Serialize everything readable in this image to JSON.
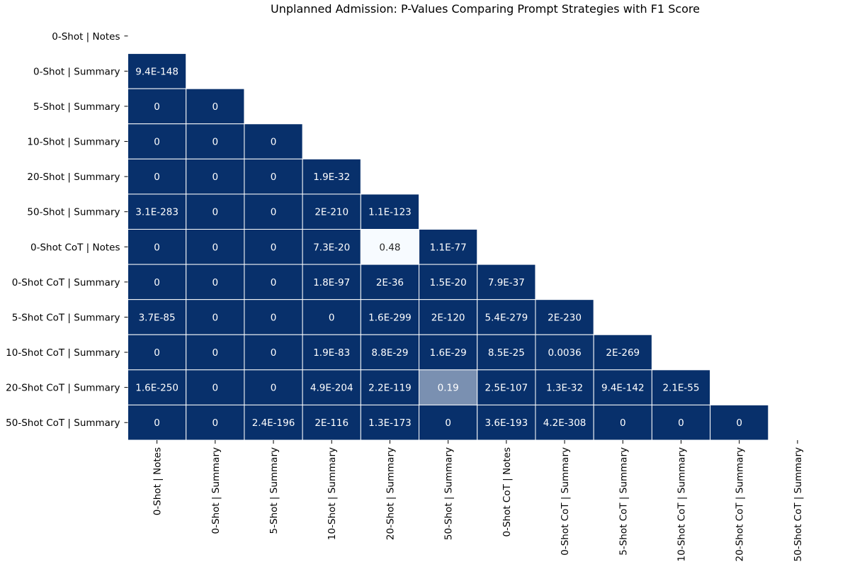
{
  "chart_data": {
    "type": "heatmap",
    "title": "Unplanned Admission: P-Values Comparing Prompt Strategies with F1 Score",
    "xlabel": "",
    "ylabel": "",
    "categories": [
      "0-Shot | Notes",
      "0-Shot | Summary",
      "5-Shot | Summary",
      "10-Shot | Summary",
      "20-Shot | Summary",
      "50-Shot | Summary",
      "0-Shot CoT | Notes",
      "0-Shot CoT | Summary",
      "5-Shot CoT | Summary",
      "10-Shot CoT | Summary",
      "20-Shot CoT | Summary",
      "50-Shot CoT | Summary"
    ],
    "mask": "upper-triangle-and-diagonal",
    "colorbar": false,
    "colors": {
      "low": "#08306b",
      "high": "#f7fbff",
      "grid": "#ffffff",
      "text_on_dark": "#ffffff",
      "text_on_light": "#262626"
    },
    "rows": [
      [],
      [
        "9.4E-148"
      ],
      [
        "0",
        "0"
      ],
      [
        "0",
        "0",
        "0"
      ],
      [
        "0",
        "0",
        "0",
        "1.9E-32"
      ],
      [
        "3.1E-283",
        "0",
        "0",
        "2E-210",
        "1.1E-123"
      ],
      [
        "0",
        "0",
        "0",
        "7.3E-20",
        "0.48",
        "1.1E-77"
      ],
      [
        "0",
        "0",
        "0",
        "1.8E-97",
        "2E-36",
        "1.5E-20",
        "7.9E-37"
      ],
      [
        "3.7E-85",
        "0",
        "0",
        "0",
        "1.6E-299",
        "2E-120",
        "5.4E-279",
        "2E-230"
      ],
      [
        "0",
        "0",
        "0",
        "1.9E-83",
        "8.8E-29",
        "1.6E-29",
        "8.5E-25",
        "0.0036",
        "2E-269"
      ],
      [
        "1.6E-250",
        "0",
        "0",
        "4.9E-204",
        "2.2E-119",
        "0.19",
        "2.5E-107",
        "1.3E-32",
        "9.4E-142",
        "2.1E-55"
      ],
      [
        "0",
        "0",
        "2.4E-196",
        "2E-116",
        "1.3E-173",
        "0",
        "3.6E-193",
        "4.2E-308",
        "0",
        "0",
        "0"
      ]
    ]
  }
}
